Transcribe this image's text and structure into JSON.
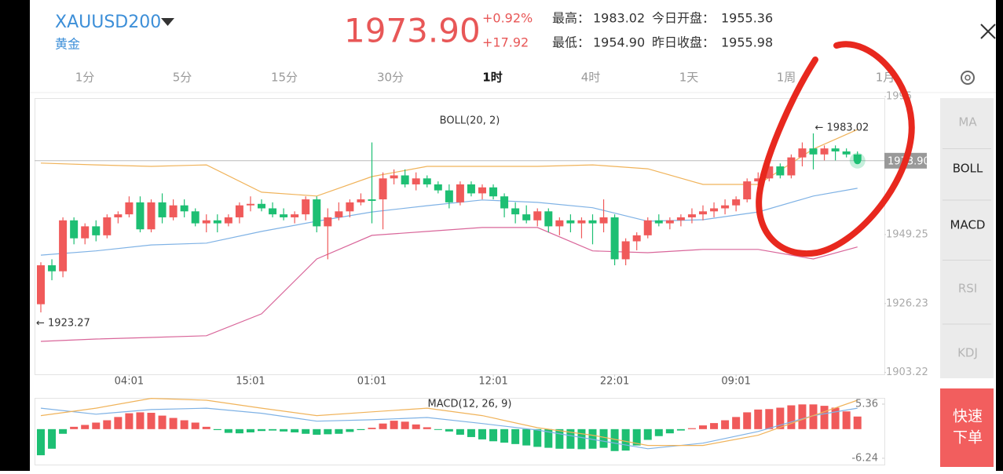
{
  "header": {
    "symbol": "XAUUSD200",
    "name": "黄金",
    "price": "1973.90",
    "change_pct": "+0.92%",
    "change": "+17.92",
    "stats": [
      {
        "label": "最高：",
        "value": "1983.02"
      },
      {
        "label": "今日开盘：",
        "value": "1955.36"
      },
      {
        "label": "最低：",
        "value": "1954.90"
      },
      {
        "label": "昨日收盘：",
        "value": "1955.98"
      }
    ]
  },
  "tabs": [
    "1分",
    "5分",
    "15分",
    "30分",
    "1时",
    "4时",
    "1天",
    "1周",
    "1月"
  ],
  "active_tab": 4,
  "indicators": [
    "MA",
    "BOLL",
    "MACD",
    "RSI",
    "KDJ"
  ],
  "active_indicators": [
    1,
    2
  ],
  "order_button": [
    "快速",
    "下单"
  ],
  "chart_data": [
    {
      "type": "candlestick",
      "title": "BOLL(20, 2)",
      "up_color": "#f05a5a",
      "down_color": "#1dbf73",
      "ylim": [
        1902.6,
        1994.8
      ],
      "yticks": [
        1903.22,
        1926.23,
        1949.25,
        {
          "value": 1995.29,
          "label": "1995"
        }
      ],
      "xticks": [
        {
          "value": 8,
          "label": "04:01"
        },
        {
          "value": 19,
          "label": "15:01"
        },
        {
          "value": 30,
          "label": "01:01"
        },
        {
          "value": 41,
          "label": "12:01"
        },
        {
          "value": 52,
          "label": "22:01"
        },
        {
          "value": 63,
          "label": "09:01"
        }
      ],
      "last": {
        "value": 1973.9,
        "label": "1973.90"
      },
      "high_label": "← 1983.02",
      "low_label": "← 1923.27",
      "ohlc": [
        [
          1926,
          1940,
          1923.27,
          1939
        ],
        [
          1939,
          1941,
          1934,
          1937
        ],
        [
          1937,
          1955,
          1935,
          1954
        ],
        [
          1954,
          1955,
          1946,
          1948
        ],
        [
          1948,
          1953,
          1946,
          1952
        ],
        [
          1952,
          1954,
          1947,
          1949
        ],
        [
          1949,
          1956,
          1948,
          1955
        ],
        [
          1955,
          1957,
          1953,
          1956
        ],
        [
          1956,
          1962,
          1955,
          1960
        ],
        [
          1960,
          1962,
          1950,
          1951
        ],
        [
          1951,
          1961,
          1950,
          1960
        ],
        [
          1960,
          1963,
          1953,
          1955
        ],
        [
          1955,
          1961,
          1954,
          1959
        ],
        [
          1959,
          1961,
          1955,
          1957
        ],
        [
          1957,
          1958,
          1952,
          1953
        ],
        [
          1953,
          1956,
          1950,
          1954
        ],
        [
          1954,
          1956,
          1950,
          1953
        ],
        [
          1953,
          1956,
          1952,
          1955
        ],
        [
          1955,
          1960,
          1953,
          1959
        ],
        [
          1959,
          1962,
          1957,
          1959.5
        ],
        [
          1959.5,
          1961,
          1957,
          1958
        ],
        [
          1958,
          1960,
          1955,
          1956
        ],
        [
          1956,
          1958,
          1954,
          1955
        ],
        [
          1955,
          1957,
          1953,
          1956
        ],
        [
          1956,
          1962,
          1954,
          1961
        ],
        [
          1961,
          1962,
          1950,
          1952
        ],
        [
          1952,
          1958,
          1941,
          1955
        ],
        [
          1955,
          1960,
          1954,
          1957
        ],
        [
          1957,
          1961,
          1955,
          1960
        ],
        [
          1960,
          1963,
          1959,
          1961
        ],
        [
          1961,
          1980,
          1953,
          1960.5
        ],
        [
          1961,
          1970,
          1951,
          1968
        ],
        [
          1968,
          1971,
          1966,
          1969
        ],
        [
          1969,
          1971,
          1965,
          1966
        ],
        [
          1966,
          1970,
          1964,
          1968
        ],
        [
          1968,
          1969,
          1965,
          1966
        ],
        [
          1966,
          1967,
          1963,
          1964
        ],
        [
          1964,
          1966,
          1958,
          1960
        ],
        [
          1960,
          1967,
          1959,
          1966
        ],
        [
          1966,
          1967,
          1962,
          1963
        ],
        [
          1963,
          1966,
          1961,
          1965
        ],
        [
          1965,
          1966,
          1961,
          1962
        ],
        [
          1962,
          1963,
          1955,
          1958
        ],
        [
          1958,
          1960,
          1953,
          1956
        ],
        [
          1956,
          1959,
          1953,
          1954
        ],
        [
          1954,
          1958,
          1952,
          1957
        ],
        [
          1957,
          1958,
          1950,
          1952
        ],
        [
          1952,
          1955,
          1949,
          1954
        ],
        [
          1954,
          1956,
          1950,
          1953
        ],
        [
          1953,
          1955,
          1948,
          1954
        ],
        [
          1954,
          1956,
          1946,
          1953
        ],
        [
          1953,
          1961,
          1950,
          1955
        ],
        [
          1955,
          1956,
          1939,
          1941
        ],
        [
          1941,
          1948,
          1939,
          1947
        ],
        [
          1947,
          1950,
          1944,
          1949
        ],
        [
          1949,
          1955,
          1948,
          1954
        ],
        [
          1954,
          1956,
          1952,
          1953
        ],
        [
          1953,
          1955,
          1951,
          1954
        ],
        [
          1954,
          1956,
          1952,
          1955
        ],
        [
          1955,
          1958,
          1953,
          1956
        ],
        [
          1956,
          1959,
          1954,
          1957
        ],
        [
          1957,
          1960,
          1955,
          1958
        ],
        [
          1958,
          1961,
          1956,
          1959
        ],
        [
          1959,
          1962,
          1957,
          1961
        ],
        [
          1961,
          1968,
          1960,
          1967
        ],
        [
          1967,
          1970,
          1965,
          1968
        ],
        [
          1968,
          1974,
          1967,
          1972
        ],
        [
          1972,
          1973,
          1968,
          1969
        ],
        [
          1969,
          1976,
          1968,
          1975
        ],
        [
          1975,
          1980,
          1972,
          1978
        ],
        [
          1978,
          1983.02,
          1971,
          1976
        ],
        [
          1976,
          1979,
          1974,
          1978
        ],
        [
          1978,
          1979,
          1974,
          1977
        ],
        [
          1977,
          1978,
          1975,
          1976
        ],
        [
          1976,
          1977,
          1973,
          1973.9
        ]
      ],
      "series": [
        {
          "color": "#f0b35a",
          "x": [
            0,
            5,
            10,
            15,
            20,
            25,
            30,
            35,
            40,
            45,
            50,
            55,
            60,
            65,
            70,
            74
          ],
          "values": [
            1973.1,
            1972.5,
            1972.0,
            1972.5,
            1963.4,
            1962.1,
            1968.6,
            1972.0,
            1972.0,
            1972.0,
            1972.5,
            1971.2,
            1966.0,
            1966.0,
            1977.8,
            1984.3
          ]
        },
        {
          "color": "#7fb2e5",
          "x": [
            0,
            5,
            10,
            15,
            20,
            25,
            30,
            35,
            40,
            45,
            50,
            55,
            60,
            65,
            70,
            74
          ],
          "values": [
            1942.4,
            1943.8,
            1945.8,
            1946.4,
            1950.3,
            1953.7,
            1956.8,
            1958.9,
            1960.8,
            1960.0,
            1958.2,
            1953.7,
            1954.2,
            1956.8,
            1962.1,
            1964.7
          ]
        },
        {
          "color": "#d9669a",
          "x": [
            0,
            5,
            10,
            15,
            20,
            25,
            30,
            35,
            40,
            45,
            50,
            55,
            60,
            65,
            70,
            74
          ],
          "values": [
            1913.6,
            1914.4,
            1914.9,
            1915.5,
            1922.8,
            1941.1,
            1949.0,
            1950.3,
            1951.6,
            1951.6,
            1943.8,
            1943.2,
            1944.3,
            1944.3,
            1941.1,
            1945.1
          ]
        }
      ]
    },
    {
      "type": "macd",
      "title": "MACD(12, 26, 9)",
      "up_color": "#f05a5a",
      "down_color": "#1dbf73",
      "ylim": [
        -7.6,
        6.7
      ],
      "yticks": [
        5.36,
        -6.24
      ],
      "values": [
        -5.6,
        -4.2,
        -1.0,
        0.5,
        0.9,
        1.4,
        1.9,
        2.6,
        3.4,
        3.6,
        3.5,
        2.9,
        2.4,
        1.9,
        1.4,
        0.5,
        -0.2,
        -0.8,
        -0.9,
        -0.7,
        -0.4,
        -0.3,
        -0.5,
        -0.7,
        -1.0,
        -1.2,
        -1.1,
        -1.0,
        -0.6,
        -0.2,
        0.3,
        1.2,
        1.8,
        1.6,
        1.0,
        0.4,
        -0.1,
        -0.5,
        -1.2,
        -1.7,
        -2.2,
        -2.6,
        -2.9,
        -3.2,
        -3.5,
        -3.8,
        -4.0,
        -4.2,
        -4.2,
        -4.3,
        -4.2,
        -4.0,
        -4.7,
        -4.6,
        -3.5,
        -2.3,
        -1.5,
        -0.9,
        -0.3,
        0.2,
        0.8,
        1.3,
        1.9,
        2.6,
        3.6,
        4.2,
        4.3,
        4.6,
        5.1,
        5.3,
        5.3,
        5.0,
        4.6,
        3.8,
        2.7
      ],
      "series": [
        {
          "color": "#7fb2e5",
          "x": [
            0,
            5,
            10,
            15,
            20,
            25,
            30,
            35,
            40,
            45,
            50,
            55,
            60,
            65,
            70,
            74
          ],
          "values": [
            4.5,
            3.2,
            4.2,
            4.5,
            3.4,
            1.7,
            2.0,
            2.5,
            1.2,
            -0.2,
            -2.2,
            -4.2,
            -3.0,
            -0.5,
            2.9,
            4.5
          ]
        },
        {
          "color": "#f0b35a",
          "x": [
            0,
            5,
            10,
            15,
            20,
            25,
            30,
            35,
            40,
            45,
            50,
            55,
            60,
            65,
            70,
            74
          ],
          "values": [
            2.9,
            4.5,
            6.6,
            6.2,
            4.5,
            2.9,
            3.7,
            4.5,
            2.9,
            0.3,
            -1.3,
            -3.5,
            -3.5,
            -1.3,
            2.9,
            6.2
          ]
        }
      ]
    }
  ]
}
